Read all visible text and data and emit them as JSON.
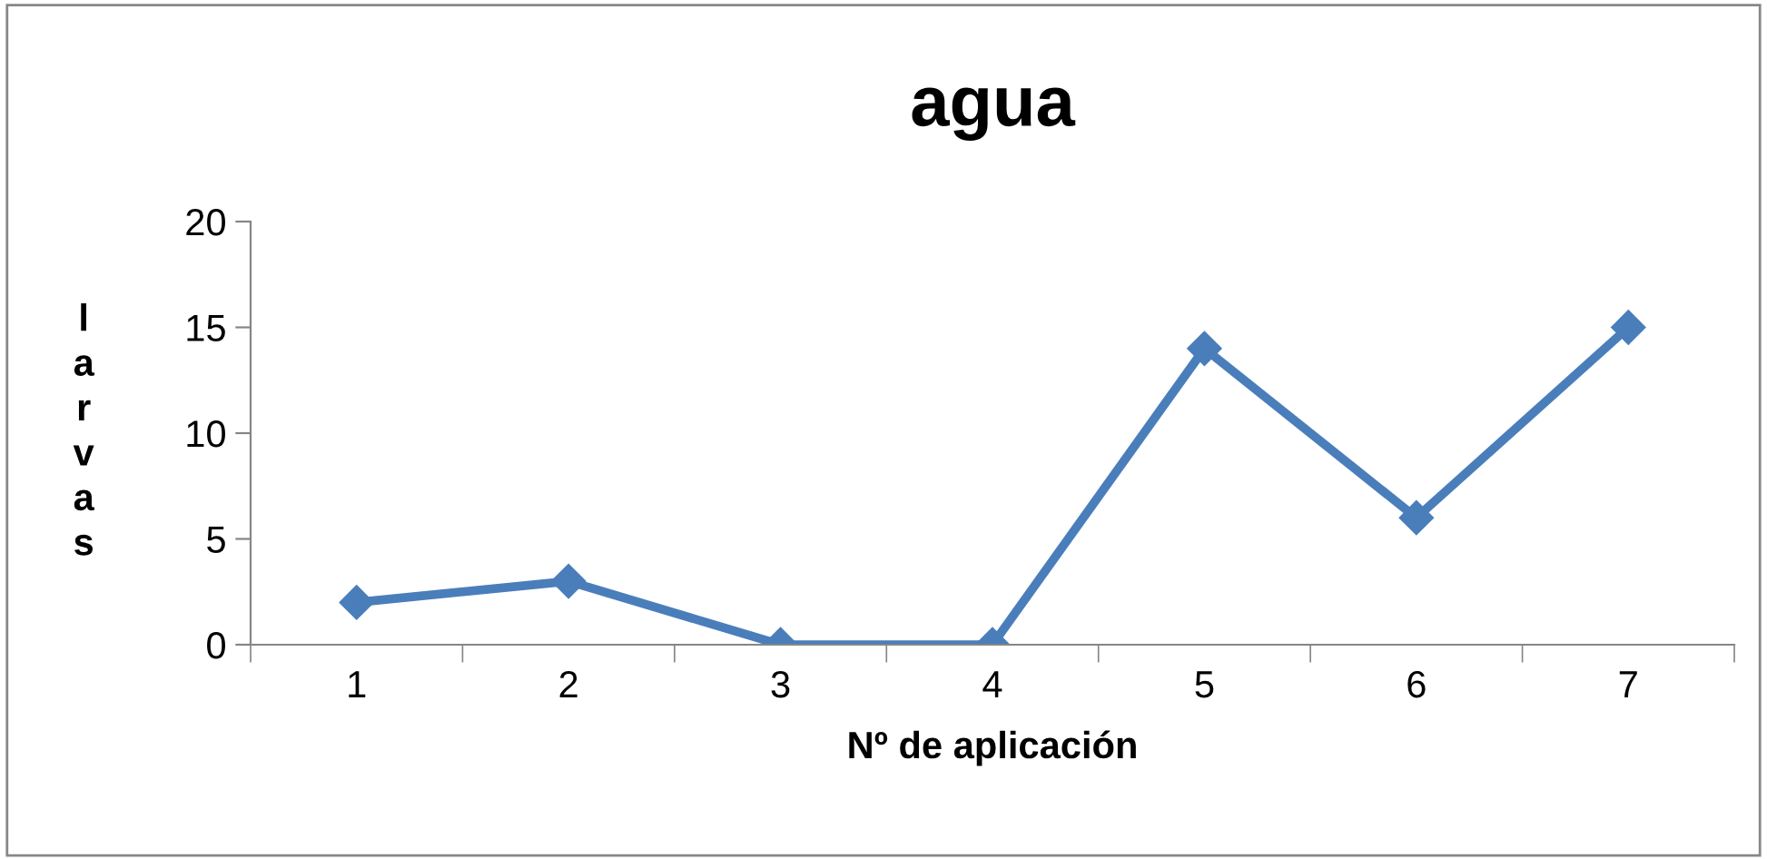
{
  "chart_data": {
    "type": "line",
    "title": "agua",
    "xlabel": "Nº de aplicación",
    "ylabel": "larvas",
    "categories": [
      "1",
      "2",
      "3",
      "4",
      "5",
      "6",
      "7"
    ],
    "series": [
      {
        "color": "#4a7ebb",
        "values": [
          2,
          3,
          0,
          0,
          14,
          6,
          15
        ]
      }
    ],
    "ylim": [
      0,
      20
    ],
    "yticks": [
      0,
      5,
      10,
      15,
      20
    ],
    "grid": false,
    "legend": false,
    "marker": "diamond",
    "line_style": "solid"
  }
}
